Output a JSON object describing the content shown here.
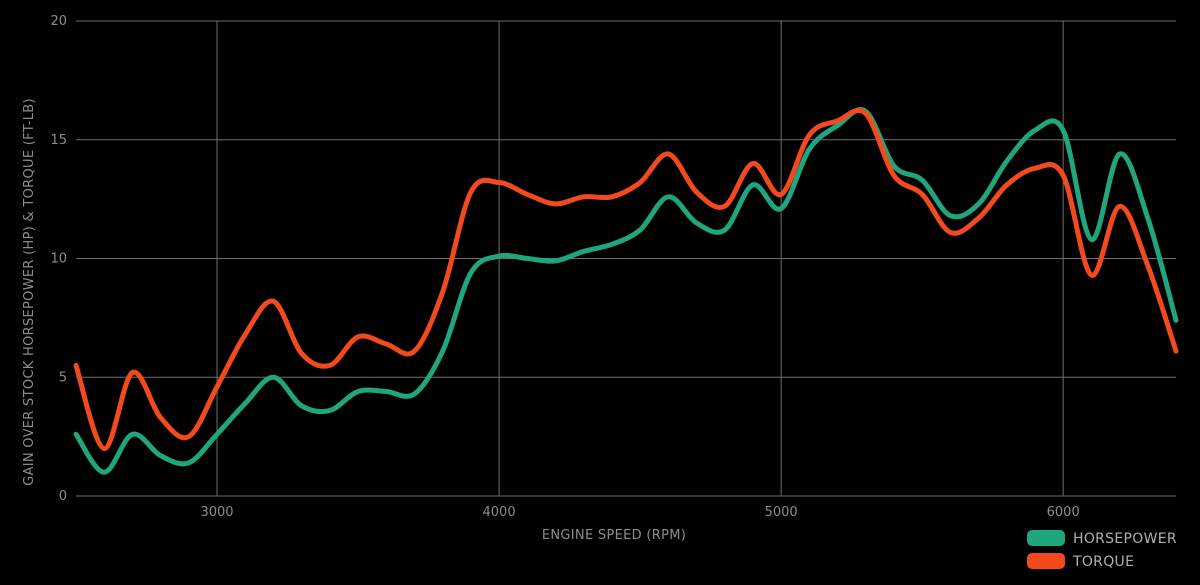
{
  "chart_data": {
    "type": "line",
    "title": "",
    "xlabel": "ENGINE SPEED (RPM)",
    "ylabel": "GAIN OVER STOCK HORSEPOWER (HP) & TORQUE (FT-LB)",
    "xlim": [
      2500,
      6400
    ],
    "ylim": [
      0,
      20
    ],
    "xticks": [
      3000,
      4000,
      5000,
      6000
    ],
    "yticks": [
      0,
      5,
      10,
      15,
      20
    ],
    "grid": true,
    "legend_position": "bottom-right",
    "series": [
      {
        "name": "HORSEPOWER",
        "color": "#1fa67f",
        "x": [
          2500,
          2600,
          2700,
          2800,
          2900,
          3000,
          3100,
          3200,
          3300,
          3400,
          3500,
          3600,
          3700,
          3800,
          3900,
          4000,
          4100,
          4200,
          4300,
          4400,
          4500,
          4600,
          4700,
          4800,
          4900,
          5000,
          5100,
          5200,
          5300,
          5400,
          5500,
          5600,
          5700,
          5800,
          5900,
          6000,
          6100,
          6200,
          6300,
          6400
        ],
        "values": [
          2.6,
          1.0,
          2.6,
          1.7,
          1.4,
          2.6,
          3.9,
          5.0,
          3.8,
          3.6,
          4.4,
          4.4,
          4.3,
          6.1,
          9.4,
          10.1,
          10.0,
          9.9,
          10.3,
          10.6,
          11.2,
          12.6,
          11.5,
          11.2,
          13.1,
          12.1,
          14.6,
          15.6,
          16.2,
          13.9,
          13.3,
          11.8,
          12.3,
          14.1,
          15.4,
          15.4,
          10.8,
          14.4,
          11.7,
          7.4
        ]
      },
      {
        "name": "TORQUE",
        "color": "#f24a1d",
        "x": [
          2500,
          2600,
          2700,
          2800,
          2900,
          3000,
          3100,
          3200,
          3300,
          3400,
          3500,
          3600,
          3700,
          3800,
          3900,
          4000,
          4100,
          4200,
          4300,
          4400,
          4500,
          4600,
          4700,
          4800,
          4900,
          5000,
          5100,
          5200,
          5300,
          5400,
          5500,
          5600,
          5700,
          5800,
          5900,
          6000,
          6100,
          6200,
          6300,
          6400
        ],
        "values": [
          5.5,
          2.0,
          5.2,
          3.3,
          2.5,
          4.6,
          6.8,
          8.2,
          6.0,
          5.5,
          6.7,
          6.4,
          6.1,
          8.6,
          12.8,
          13.2,
          12.7,
          12.3,
          12.6,
          12.6,
          13.2,
          14.4,
          12.8,
          12.2,
          14.0,
          12.7,
          15.2,
          15.8,
          16.1,
          13.5,
          12.7,
          11.1,
          11.7,
          13.1,
          13.8,
          13.5,
          9.3,
          12.2,
          9.7,
          6.1
        ]
      }
    ]
  }
}
